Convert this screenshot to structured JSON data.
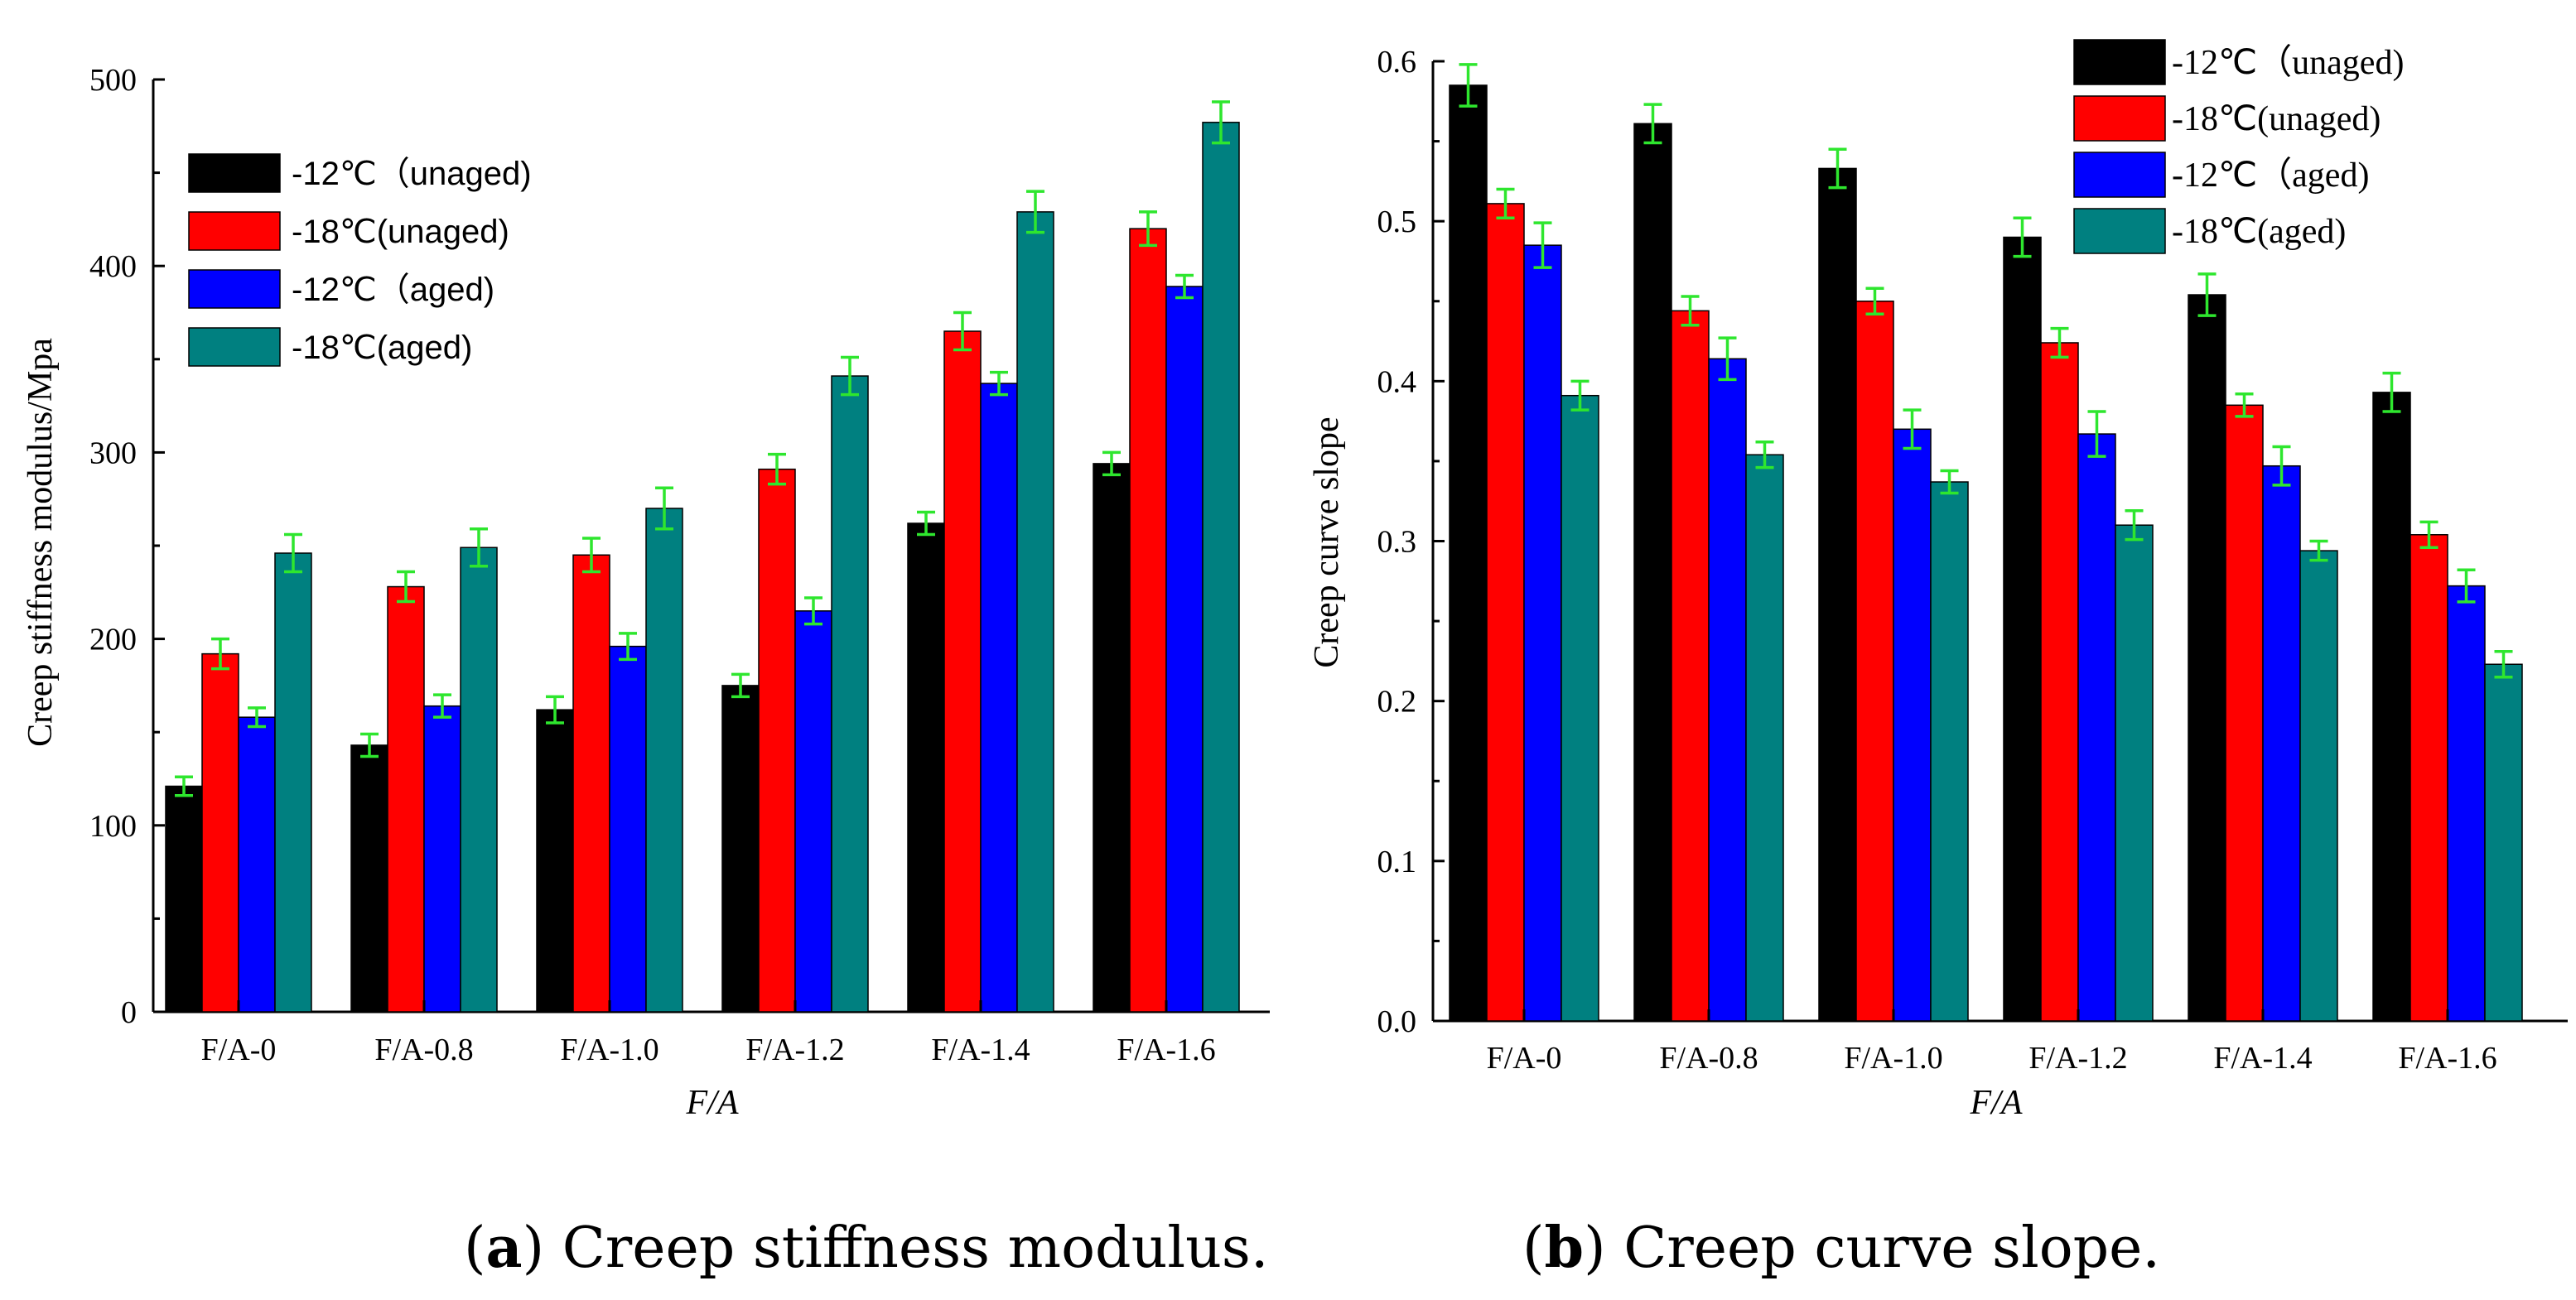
{
  "colors": {
    "series": [
      "#000000",
      "#FF0000",
      "#0000FF",
      "#008080"
    ],
    "error_bar": "#2EE62E"
  },
  "chart_data": [
    {
      "type": "bar",
      "xlabel": "F/A",
      "ylabel": "Creep stiffness modulus/Mpa",
      "ylim": [
        0,
        500
      ],
      "yticks": [
        "0",
        "100",
        "200",
        "300",
        "400",
        "500"
      ],
      "categories": [
        "F/A-0",
        "F/A-0.8",
        "F/A-1.0",
        "F/A-1.2",
        "F/A-1.4",
        "F/A-1.6"
      ],
      "legend_position": "top-left",
      "series": [
        {
          "name": "-12℃（unaged)",
          "values": [
            121,
            143,
            162,
            175,
            262,
            294
          ],
          "errors": [
            5,
            6,
            7,
            6,
            6,
            6
          ]
        },
        {
          "name": "-18℃(unaged)",
          "values": [
            192,
            228,
            245,
            291,
            365,
            420
          ],
          "errors": [
            8,
            8,
            9,
            8,
            10,
            9
          ]
        },
        {
          "name": "-12℃（aged)",
          "values": [
            158,
            164,
            196,
            215,
            337,
            389
          ],
          "errors": [
            5,
            6,
            7,
            7,
            6,
            6
          ]
        },
        {
          "name": "-18℃(aged)",
          "values": [
            246,
            249,
            270,
            341,
            429,
            477
          ],
          "errors": [
            10,
            10,
            11,
            10,
            11,
            11
          ]
        }
      ]
    },
    {
      "type": "bar",
      "xlabel": "F/A",
      "ylabel": "Creep curve slope",
      "ylim": [
        0,
        0.6
      ],
      "yticks": [
        "0.0",
        "0.1",
        "0.2",
        "0.3",
        "0.4",
        "0.5",
        "0.6"
      ],
      "categories": [
        "F/A-0",
        "F/A-0.8",
        "F/A-1.0",
        "F/A-1.2",
        "F/A-1.4",
        "F/A-1.6"
      ],
      "legend_position": "top-right",
      "series": [
        {
          "name": "-12℃（unaged)",
          "values": [
            0.585,
            0.561,
            0.533,
            0.49,
            0.454,
            0.393
          ],
          "errors": [
            0.013,
            0.012,
            0.012,
            0.012,
            0.013,
            0.012
          ]
        },
        {
          "name": "-18℃(unaged)",
          "values": [
            0.511,
            0.444,
            0.45,
            0.424,
            0.385,
            0.304
          ],
          "errors": [
            0.009,
            0.009,
            0.008,
            0.009,
            0.007,
            0.008
          ]
        },
        {
          "name": "-12℃（aged)",
          "values": [
            0.485,
            0.414,
            0.37,
            0.367,
            0.347,
            0.272
          ],
          "errors": [
            0.014,
            0.013,
            0.012,
            0.014,
            0.012,
            0.01
          ]
        },
        {
          "name": "-18℃(aged)",
          "values": [
            0.391,
            0.354,
            0.337,
            0.31,
            0.294,
            0.223
          ],
          "errors": [
            0.009,
            0.008,
            0.007,
            0.009,
            0.006,
            0.008
          ]
        }
      ]
    }
  ],
  "captions": [
    {
      "letter": "a",
      "text": " Creep stiffness modulus."
    },
    {
      "letter": "b",
      "text": " Creep curve slope."
    }
  ]
}
